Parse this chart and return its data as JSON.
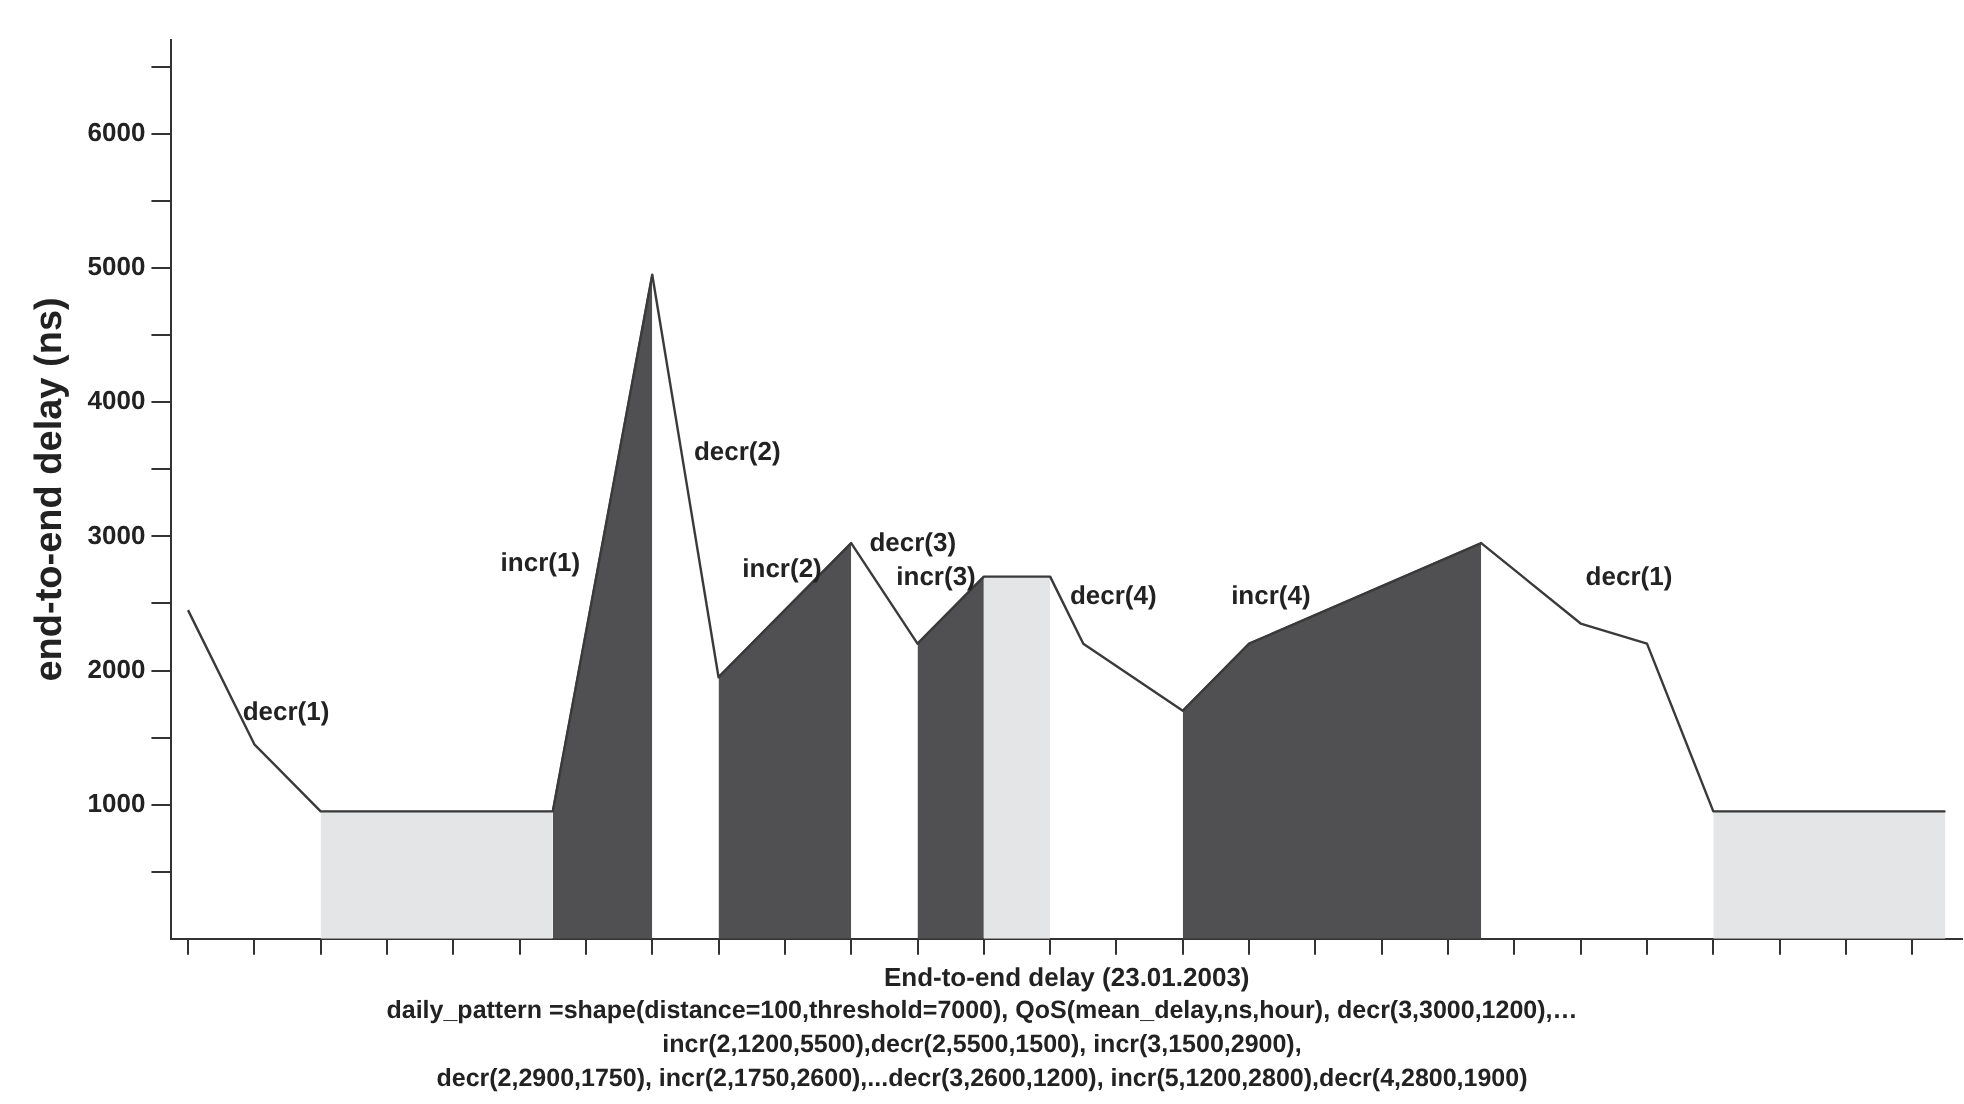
{
  "chart_data": {
    "type": "line",
    "xlabel": "End-to-end delay (23.01.2003)",
    "ylabel": "end-to-end delay (ns)",
    "categories": [
      null,
      null,
      null,
      null,
      null,
      null,
      null,
      null,
      null,
      null,
      null,
      null,
      null,
      null,
      null,
      null,
      null,
      null,
      null,
      null,
      null,
      null,
      null,
      null,
      null,
      null,
      null,
      null,
      null,
      null,
      null,
      null,
      null,
      null,
      null,
      null,
      null,
      null,
      null,
      null,
      null,
      null,
      null,
      null,
      null,
      null,
      null,
      null,
      null,
      null,
      null,
      null,
      null,
      null
    ],
    "ylim": [
      0,
      6700
    ],
    "yticks": [
      {
        "value": 500,
        "label": null
      },
      1000,
      {
        "value": 1500,
        "label": null
      },
      2000,
      {
        "value": 2500,
        "label": null
      },
      3000,
      {
        "value": 3500,
        "label": null
      },
      4000,
      {
        "value": 4500,
        "label": null
      },
      5000,
      {
        "value": 5500,
        "label": null
      },
      6000,
      {
        "value": 6500,
        "label": null
      }
    ],
    "tick_labels": "y",
    "series": [
      {
        "color": "#3a3a3a",
        "values": [
          2450,
          null,
          1450,
          null,
          950,
          null,
          null,
          null,
          null,
          null,
          null,
          950,
          null,
          null,
          4950,
          null,
          1950,
          null,
          null,
          null,
          2950,
          null,
          2200,
          null,
          2700,
          null,
          2700,
          2200,
          null,
          null,
          1700,
          null,
          2200,
          null,
          null,
          null,
          null,
          null,
          null,
          2950,
          null,
          null,
          2350,
          null,
          2200,
          null,
          950,
          null,
          null,
          null,
          null,
          null,
          null,
          950
        ]
      },
      {
        "type": "area",
        "color": "#e4e5e7",
        "values": [
          null,
          null,
          null,
          null,
          950,
          null,
          null,
          null,
          null,
          null,
          null,
          950,
          null,
          null,
          null,
          null,
          null,
          null,
          null,
          null,
          null,
          null,
          null,
          null,
          null,
          null,
          null,
          null,
          null,
          null,
          null,
          null,
          null,
          null,
          null,
          null,
          null,
          null,
          null,
          null,
          null,
          null,
          null,
          null,
          null,
          null,
          null,
          null,
          null,
          null,
          null,
          null,
          null,
          null
        ]
      },
      {
        "type": "area",
        "color": "#505052",
        "values": [
          null,
          null,
          null,
          null,
          null,
          null,
          null,
          null,
          null,
          null,
          null,
          950,
          null,
          null,
          4950,
          null,
          null,
          null,
          null,
          null,
          null,
          null,
          null,
          null,
          null,
          null,
          null,
          null,
          null,
          null,
          null,
          null,
          null,
          null,
          null,
          null,
          null,
          null,
          null,
          null,
          null,
          null,
          null,
          null,
          null,
          null,
          null,
          null,
          null,
          null,
          null,
          null,
          null,
          null
        ]
      },
      {
        "type": "area",
        "color": "#505052",
        "values": [
          null,
          null,
          null,
          null,
          null,
          null,
          null,
          null,
          null,
          null,
          null,
          null,
          null,
          null,
          null,
          null,
          1950,
          null,
          null,
          null,
          2950,
          null,
          null,
          null,
          null,
          null,
          null,
          null,
          null,
          null,
          null,
          null,
          null,
          null,
          null,
          null,
          null,
          null,
          null,
          null,
          null,
          null,
          null,
          null,
          null,
          null,
          null,
          null,
          null,
          null,
          null,
          null,
          null,
          null
        ]
      },
      {
        "type": "area",
        "color": "#505052",
        "values": [
          null,
          null,
          null,
          null,
          null,
          null,
          null,
          null,
          null,
          null,
          null,
          null,
          null,
          null,
          null,
          null,
          null,
          null,
          null,
          null,
          null,
          null,
          2200,
          null,
          2700,
          null,
          null,
          null,
          null,
          null,
          null,
          null,
          null,
          null,
          null,
          null,
          null,
          null,
          null,
          null,
          null,
          null,
          null,
          null,
          null,
          null,
          null,
          null,
          null,
          null,
          null,
          null,
          null,
          null
        ]
      },
      {
        "type": "area",
        "color": "#e4e5e7",
        "values": [
          null,
          null,
          null,
          null,
          null,
          null,
          null,
          null,
          null,
          null,
          null,
          null,
          null,
          null,
          null,
          null,
          null,
          null,
          null,
          null,
          null,
          null,
          null,
          null,
          2700,
          null,
          2700,
          null,
          null,
          null,
          null,
          null,
          null,
          null,
          null,
          null,
          null,
          null,
          null,
          null,
          null,
          null,
          null,
          null,
          null,
          null,
          null,
          null,
          null,
          null,
          null,
          null,
          null,
          null
        ]
      },
      {
        "type": "area",
        "color": "#505052",
        "values": [
          null,
          null,
          null,
          null,
          null,
          null,
          null,
          null,
          null,
          null,
          null,
          null,
          null,
          null,
          null,
          null,
          null,
          null,
          null,
          null,
          null,
          null,
          null,
          null,
          null,
          null,
          null,
          null,
          null,
          null,
          1700,
          null,
          2200,
          null,
          null,
          null,
          null,
          null,
          null,
          2950,
          null,
          null,
          null,
          null,
          null,
          null,
          null,
          null,
          null,
          null,
          null,
          null,
          null,
          null
        ]
      },
      {
        "type": "area",
        "color": "#e4e5e7",
        "values": [
          null,
          null,
          null,
          null,
          null,
          null,
          null,
          null,
          null,
          null,
          null,
          null,
          null,
          null,
          null,
          null,
          null,
          null,
          null,
          null,
          null,
          null,
          null,
          null,
          null,
          null,
          null,
          null,
          null,
          null,
          null,
          null,
          null,
          null,
          null,
          null,
          null,
          null,
          null,
          null,
          null,
          null,
          null,
          null,
          null,
          null,
          950,
          null,
          null,
          null,
          null,
          null,
          null,
          950
        ]
      }
    ],
    "annotations": [
      "decr(1)",
      "incr(1)",
      "decr(2)",
      "incr(2)",
      "decr(3)",
      "incr(3)",
      "decr(4)",
      "incr(4)",
      "decr(1)",
      "daily_pattern =shape(distance=100,threshold=7000), QoS(mean_delay,ns,hour), decr(3,3000,1200),…",
      "incr(2,1200,5500),decr(2,5500,1500), incr(3,1500,2900),",
      "decr(2,2900,1750), incr(2,1750,2600),...decr(3,2600,1200), incr(5,1200,2800),decr(4,2800,1900)"
    ]
  }
}
